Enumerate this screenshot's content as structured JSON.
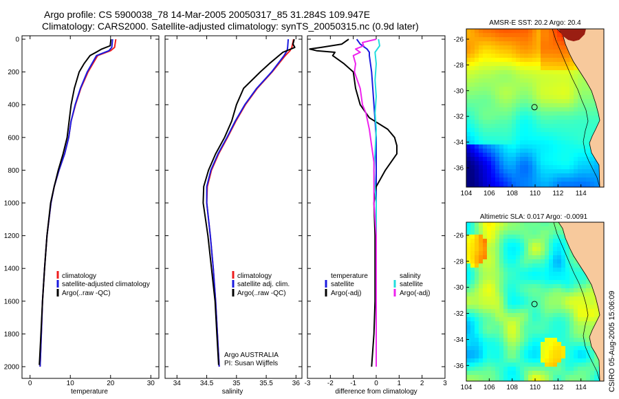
{
  "titles": {
    "line1": "Argo profile: CS 5900038_78 14-Mar-2005 20050317_85 31.284S 109.947E",
    "line2": "Climatology: CARS2000. Satellite-adjusted climatology: synTS_20050315.nc (0.9d later)"
  },
  "side_label": "CSIRO 05-Aug-2005 15:06:09",
  "colors": {
    "climatology": "#ee1c1c",
    "satellite": "#1a1adf",
    "argo": "#000000",
    "salinity": "#22dddd",
    "argo_salinity": "#ee22ee",
    "land": "#f7c99c"
  },
  "chart_data": [
    {
      "type": "line",
      "id": "temperature",
      "xlabel": "temperature",
      "ylim": [
        0,
        2100
      ],
      "xlim": [
        -2,
        32
      ],
      "xticks": [
        "0",
        "10",
        "20",
        "30"
      ],
      "yticks": [
        "0",
        "200",
        "400",
        "600",
        "800",
        "1000",
        "1200",
        "1400",
        "1600",
        "1800",
        "2000"
      ],
      "legend": {
        "items": [
          "climatology",
          "satellite-adjusted climatology",
          "Argo(..raw -QC)"
        ]
      },
      "series": [
        {
          "name": "climatology",
          "depth": [
            0,
            50,
            70,
            100,
            200,
            300,
            400,
            500,
            600,
            700,
            800,
            900,
            1000,
            1200,
            1400,
            1600,
            1800,
            2000
          ],
          "values": [
            21.3,
            21.0,
            20.0,
            16.8,
            14.4,
            12.6,
            11.3,
            10.2,
            9.6,
            8.6,
            7.2,
            6.0,
            5.2,
            4.2,
            3.6,
            3.1,
            2.8,
            2.5
          ]
        },
        {
          "name": "satellite-adjusted climatology",
          "depth": [
            0,
            50,
            70,
            100,
            200,
            300,
            400,
            500,
            600,
            700,
            800,
            900,
            1000,
            1200,
            1400,
            1600,
            1800,
            2000
          ],
          "values": [
            20.5,
            20.3,
            19.6,
            16.5,
            14.2,
            12.5,
            11.2,
            10.2,
            9.6,
            8.6,
            7.2,
            6.0,
            5.2,
            4.2,
            3.6,
            3.1,
            2.8,
            2.5
          ]
        },
        {
          "name": "Argo(..raw -QC)",
          "depth": [
            0,
            40,
            60,
            80,
            100,
            150,
            200,
            250,
            300,
            400,
            500,
            600,
            700,
            800,
            900,
            1000,
            1200,
            1400,
            1600,
            1800,
            1990
          ],
          "values": [
            20.1,
            19.9,
            17.8,
            16.4,
            14.9,
            13.4,
            12.2,
            11.6,
            11.0,
            10.2,
            9.7,
            9.2,
            8.2,
            7.0,
            6.0,
            5.1,
            4.2,
            3.6,
            3.1,
            2.7,
            2.3
          ]
        }
      ]
    },
    {
      "type": "line",
      "id": "salinity",
      "xlabel": "salinity",
      "ylim": [
        0,
        2100
      ],
      "xlim": [
        33.8,
        36.1
      ],
      "xticks": [
        "34",
        "34.5",
        "35",
        "35.5",
        "36"
      ],
      "legend": {
        "items": [
          "climatology",
          "satellite adj. clim.",
          "Argo(..raw -QC)"
        ]
      },
      "annotation": [
        "Argo AUSTRALIA",
        "PI: Susan Wijffels"
      ],
      "series": [
        {
          "name": "climatology",
          "depth": [
            0,
            50,
            70,
            100,
            200,
            300,
            400,
            500,
            600,
            700,
            800,
            900,
            1000,
            1200,
            1400,
            1600,
            1800,
            2000
          ],
          "values": [
            35.96,
            35.93,
            35.9,
            35.82,
            35.6,
            35.35,
            35.15,
            34.99,
            34.85,
            34.7,
            34.58,
            34.51,
            34.5,
            34.56,
            34.61,
            34.65,
            34.68,
            34.71
          ]
        },
        {
          "name": "satellite adj. clim.",
          "depth": [
            0,
            50,
            70,
            100,
            200,
            300,
            400,
            500,
            600,
            700,
            800,
            900,
            1000,
            1200,
            1400,
            1600,
            1800,
            2000
          ],
          "values": [
            35.87,
            35.86,
            35.85,
            35.8,
            35.59,
            35.34,
            35.14,
            34.98,
            34.84,
            34.69,
            34.57,
            34.5,
            34.5,
            34.56,
            34.61,
            34.65,
            34.68,
            34.71
          ]
        },
        {
          "name": "Argo(..raw -QC)",
          "depth": [
            0,
            30,
            50,
            80,
            150,
            200,
            300,
            400,
            500,
            600,
            700,
            800,
            900,
            1000,
            1200,
            1400,
            1600,
            1800,
            1990
          ],
          "values": [
            35.97,
            35.95,
            35.98,
            35.78,
            35.55,
            35.4,
            35.12,
            35.0,
            34.92,
            34.8,
            34.65,
            34.53,
            34.45,
            34.44,
            34.52,
            34.58,
            34.64,
            34.67,
            34.7
          ]
        }
      ]
    },
    {
      "type": "line",
      "id": "difference",
      "xlabel": "difference from climatology",
      "ylim": [
        0,
        2100
      ],
      "xlim": [
        -3,
        3
      ],
      "xticks": [
        "-3",
        "-2",
        "-1",
        "0",
        "1",
        "2",
        "3"
      ],
      "legend": {
        "temperature_items": [
          "temperature",
          "satellite",
          "Argo(-adj)"
        ],
        "salinity_items": [
          "salinity",
          "satellite",
          "Argo(-adj)"
        ]
      },
      "series": [
        {
          "name": "temperature satellite",
          "depth": [
            0,
            30,
            60,
            80,
            100,
            200,
            400,
            600,
            800,
            1000,
            1400,
            2000
          ],
          "values": [
            -0.85,
            -0.7,
            -0.4,
            -0.3,
            -0.3,
            -0.2,
            -0.1,
            0.0,
            0.0,
            0.0,
            0.0,
            0.0
          ]
        },
        {
          "name": "temperature Argo(-adj)",
          "depth": [
            0,
            30,
            50,
            60,
            70,
            80,
            100,
            150,
            200,
            300,
            400,
            480,
            550,
            600,
            650,
            700,
            800,
            900,
            1000,
            1200,
            1400,
            1600,
            1800,
            2000
          ],
          "values": [
            -1.2,
            -1.5,
            -2.4,
            -2.9,
            -2.6,
            -1.8,
            -1.9,
            -1.4,
            -1.0,
            -0.9,
            -0.7,
            -0.3,
            0.5,
            0.8,
            0.9,
            0.9,
            0.4,
            0.0,
            -0.1,
            -0.05,
            -0.05,
            -0.05,
            -0.1,
            -0.2
          ]
        },
        {
          "name": "salinity satellite",
          "depth": [
            0,
            40,
            80,
            150,
            250,
            350,
            450,
            550,
            700,
            800,
            900,
            1000,
            1400,
            2000
          ],
          "values": [
            0.1,
            0.15,
            -0.05,
            0.0,
            -0.05,
            0.0,
            -0.05,
            0.0,
            -0.05,
            -0.1,
            -0.05,
            0.0,
            0.0,
            0.0
          ]
        },
        {
          "name": "salinity Argo(-adj)",
          "depth": [
            0,
            20,
            40,
            60,
            80,
            100,
            150,
            200,
            300,
            400,
            450,
            550,
            650,
            750,
            900,
            1000,
            1200,
            1400,
            1600,
            1800,
            2000
          ],
          "values": [
            0.0,
            -0.6,
            -0.55,
            -0.9,
            -0.7,
            -1.0,
            -0.9,
            -0.95,
            -0.7,
            -0.6,
            -0.45,
            -0.3,
            -0.2,
            -0.1,
            -0.1,
            -0.1,
            0.0,
            0.0,
            0.0,
            0.0,
            0.0
          ]
        }
      ]
    },
    {
      "type": "heatmap",
      "id": "sst-map",
      "title": "AMSR-E SST: 20.2 Argo: 20.4",
      "xticks": [
        "104",
        "106",
        "108",
        "110",
        "112",
        "114"
      ],
      "yticks": [
        "-26",
        "-28",
        "-30",
        "-32",
        "-34",
        "-36"
      ],
      "xlim": [
        104,
        116
      ],
      "ylim": [
        -37.5,
        -25.2
      ],
      "marker": {
        "lon": 109.947,
        "lat": -31.284
      }
    },
    {
      "type": "heatmap",
      "id": "sla-map",
      "title": "Altimetric SLA: 0.017 Argo: -0.0091",
      "xticks": [
        "104",
        "106",
        "108",
        "110",
        "112",
        "114"
      ],
      "yticks": [
        "-26",
        "-28",
        "-30",
        "-32",
        "-34",
        "-36"
      ],
      "xlim": [
        104,
        116
      ],
      "ylim": [
        -37.2,
        -25.0
      ],
      "marker": {
        "lon": 109.947,
        "lat": -31.284
      }
    }
  ]
}
